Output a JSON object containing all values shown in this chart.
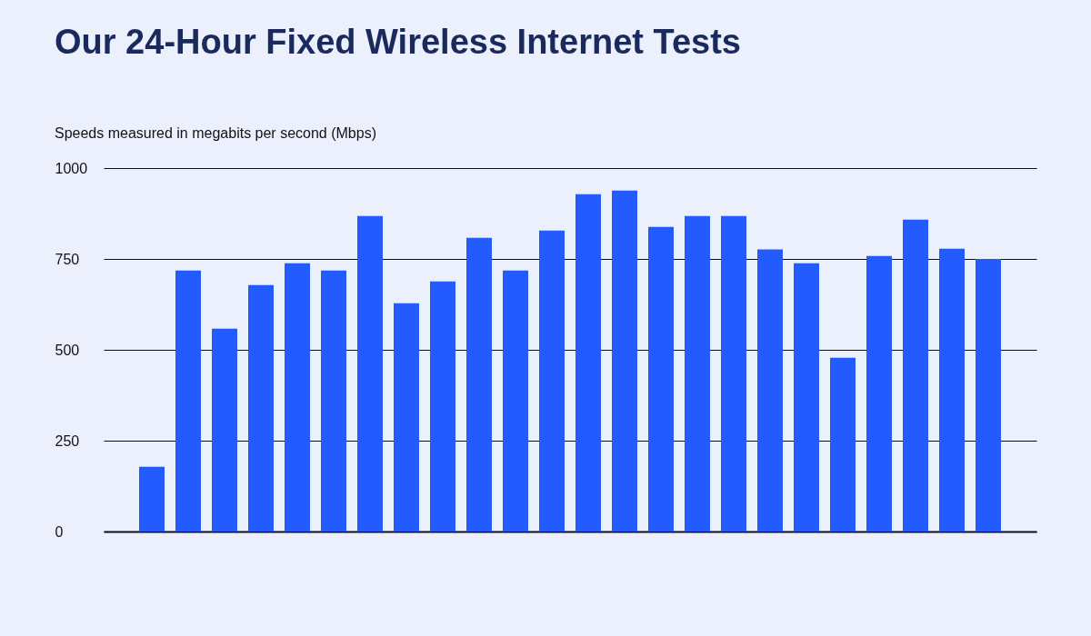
{
  "chart_data": {
    "type": "bar",
    "title": "Our 24-Hour Fixed Wireless Internet Tests",
    "subtitle": "Speeds measured in megabits per second (Mbps)",
    "categories": [
      null,
      null,
      null,
      null,
      null,
      null,
      null,
      null,
      null,
      null,
      null,
      null,
      null,
      null,
      null,
      null,
      null,
      null,
      null,
      null,
      null,
      null,
      null,
      null
    ],
    "values": [
      178,
      718,
      558,
      678,
      738,
      718,
      868,
      628,
      688,
      808,
      718,
      828,
      928,
      938,
      838,
      868,
      868,
      776,
      738,
      478,
      758,
      858,
      778,
      750
    ],
    "color": "#245bff",
    "ylim": [
      0,
      1000
    ],
    "yticks": [
      0,
      250,
      500,
      750,
      1000
    ],
    "grid": "y"
  }
}
